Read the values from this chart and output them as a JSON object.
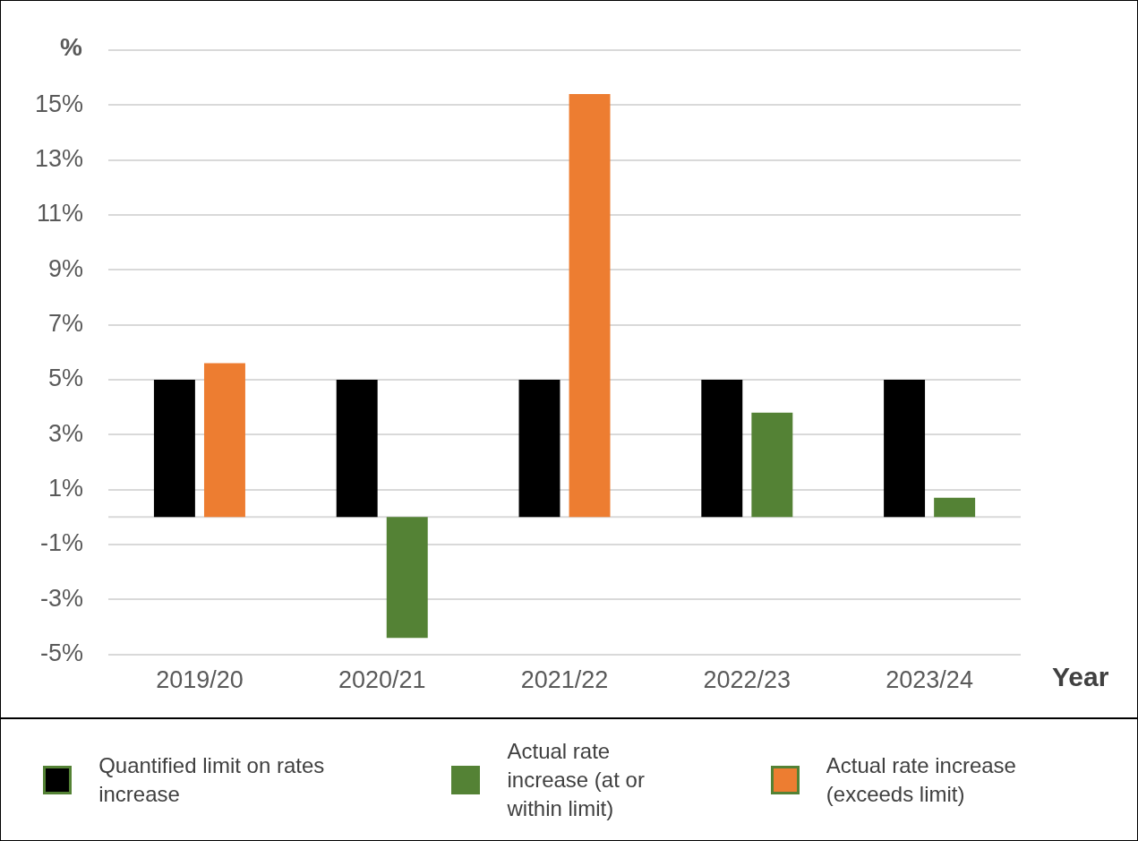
{
  "chart_data": {
    "type": "bar",
    "ylabel": "%",
    "xlabel": "Year",
    "categories": [
      "2019/20",
      "2020/21",
      "2021/22",
      "2022/23",
      "2023/24"
    ],
    "series": [
      {
        "name": "Quantified limit on rates increase",
        "color": "#000000",
        "values": [
          5,
          5,
          5,
          5,
          5
        ]
      },
      {
        "name": "Actual rate increase (at or within limit)",
        "color": "#548235",
        "values": [
          null,
          -4.4,
          null,
          3.8,
          0.7
        ]
      },
      {
        "name": "Actual rate increase (exceeds limit)",
        "color": "#ed7d31",
        "values": [
          5.6,
          null,
          15.4,
          null,
          null
        ]
      }
    ],
    "ylim": [
      -5,
      17
    ],
    "yticks": [
      {
        "value": -5,
        "label": "-5%"
      },
      {
        "value": -3,
        "label": "-3%"
      },
      {
        "value": -1,
        "label": "-1%"
      },
      {
        "value": 1,
        "label": "1%"
      },
      {
        "value": 3,
        "label": "3%"
      },
      {
        "value": 5,
        "label": "5%"
      },
      {
        "value": 7,
        "label": "7%"
      },
      {
        "value": 9,
        "label": "9%"
      },
      {
        "value": 11,
        "label": "11%"
      },
      {
        "value": 13,
        "label": "13%"
      },
      {
        "value": 15,
        "label": "15%"
      },
      {
        "value": 17,
        "label": null
      }
    ],
    "grid": "y",
    "legend": "bottom"
  }
}
